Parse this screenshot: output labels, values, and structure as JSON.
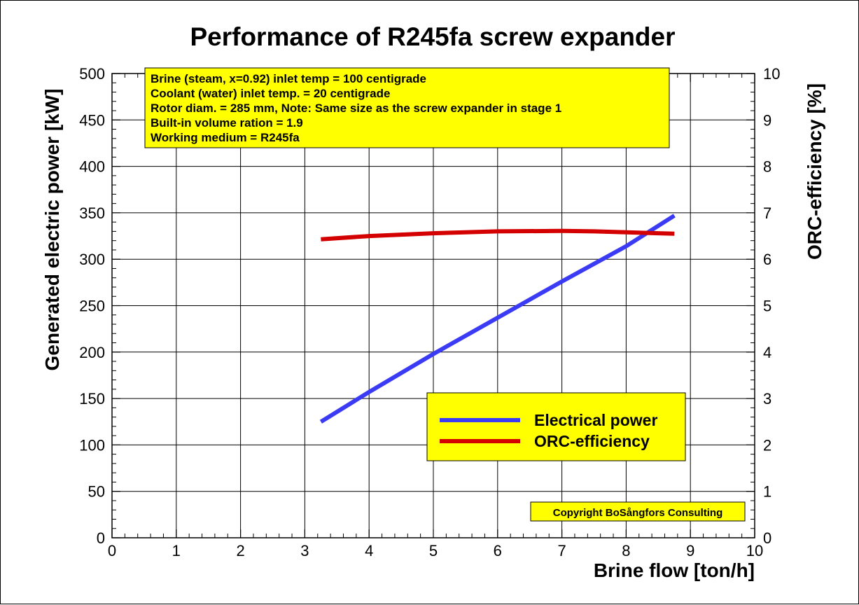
{
  "chart_data": {
    "type": "line",
    "title": "Performance of R245fa screw expander",
    "xlabel": "Brine flow [ton/h]",
    "ylabel": "Generated electric power [kW]",
    "y2label": "ORC-efficiency [%]",
    "xlim": [
      0,
      10
    ],
    "ylim": [
      0,
      500
    ],
    "y2lim": [
      0,
      10
    ],
    "x_ticks": [
      "0",
      "1",
      "2",
      "3",
      "4",
      "5",
      "6",
      "7",
      "8",
      "9",
      "10"
    ],
    "y_ticks": [
      "0",
      "50",
      "100",
      "150",
      "200",
      "250",
      "300",
      "350",
      "400",
      "450",
      "500"
    ],
    "y2_ticks": [
      "0",
      "1",
      "2",
      "3",
      "4",
      "5",
      "6",
      "7",
      "8",
      "9",
      "10"
    ],
    "grid": true,
    "series": [
      {
        "name": "Electrical power",
        "axis": "left",
        "color": "#3b3bf5",
        "x": [
          3.25,
          4,
          5,
          6,
          7,
          8,
          8.75
        ],
        "y": [
          125,
          157,
          198,
          237,
          276,
          314,
          347
        ]
      },
      {
        "name": "ORC-efficiency",
        "axis": "right",
        "color": "#d40000",
        "x": [
          3.25,
          4,
          5,
          6,
          7,
          7.5,
          8,
          8.5,
          8.75
        ],
        "y": [
          6.43,
          6.5,
          6.56,
          6.6,
          6.61,
          6.6,
          6.58,
          6.56,
          6.55
        ]
      }
    ],
    "info_box": {
      "lines": [
        "Brine (steam, x=0.92) inlet temp = 100 centigrade",
        "Coolant (water) inlet temp. = 20 centigrade",
        "Rotor diam. = 285 mm, Note: Same size as the screw expander in stage 1",
        "Built-in volume ration = 1.9",
        "Working medium = R245fa"
      ],
      "background": "#ffff00"
    },
    "legend": {
      "placement": "lower-right",
      "background": "#ffff00"
    },
    "copyright": "Copyright BoSångfors Consulting"
  }
}
